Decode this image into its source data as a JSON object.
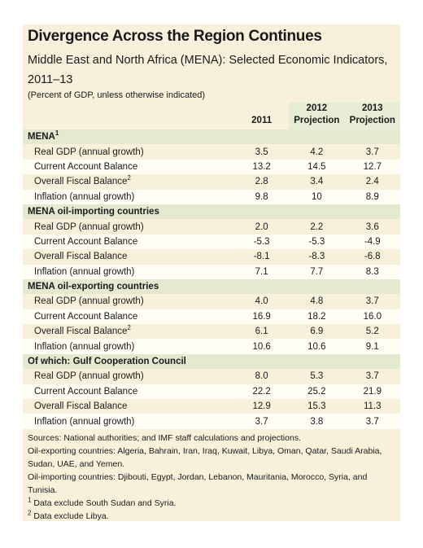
{
  "header": {
    "title": "Divergence Across the Region Continues",
    "subtitle": "Middle East and North Africa (MENA): Selected Economic Indicators, 2011–13",
    "note": "(Percent of GDP, unless otherwise indicated)"
  },
  "table": {
    "columns": [
      {
        "year": "2011"
      },
      {
        "year": "2012",
        "sub": "Projection"
      },
      {
        "year": "2013",
        "sub": "Projection"
      }
    ],
    "sections": [
      {
        "label": "MENA",
        "sup": "1",
        "rows": [
          {
            "label": "Real GDP (annual growth)",
            "values": [
              "3.5",
              "4.2",
              "3.7"
            ]
          },
          {
            "label": "Current Account Balance",
            "values": [
              "13.2",
              "14.5",
              "12.7"
            ]
          },
          {
            "label": "Overall Fiscal Balance",
            "sup": "2",
            "values": [
              "2.8",
              "3.4",
              "2.4"
            ]
          },
          {
            "label": "Inflation (annual growth)",
            "values": [
              "9.8",
              "10",
              "8.9"
            ]
          }
        ]
      },
      {
        "label": "MENA oil-importing countries",
        "rows": [
          {
            "label": "Real GDP (annual growth)",
            "values": [
              "2.0",
              "2.2",
              "3.6"
            ]
          },
          {
            "label": "Current Account Balance",
            "values": [
              "-5.3",
              "-5.3",
              "-4.9"
            ]
          },
          {
            "label": "Overall Fiscal Balance",
            "values": [
              "-8.1",
              "-8.3",
              "-6.8"
            ]
          },
          {
            "label": "Inflation (annual growth)",
            "values": [
              "7.1",
              "7.7",
              "8.3"
            ]
          }
        ]
      },
      {
        "label": "MENA oil-exporting countries",
        "rows": [
          {
            "label": "Real GDP (annual growth)",
            "values": [
              "4.0",
              "4.8",
              "3.7"
            ]
          },
          {
            "label": "Current Account Balance",
            "values": [
              "16.9",
              "18.2",
              "16.0"
            ]
          },
          {
            "label": "Overall Fiscal Balance",
            "sup": "2",
            "values": [
              "6.1",
              "6.9",
              "5.2"
            ]
          },
          {
            "label": "Inflation (annual growth)",
            "values": [
              "10.6",
              "10.6",
              "9.1"
            ]
          }
        ]
      },
      {
        "label": "Of which: Gulf Cooperation Council",
        "rows": [
          {
            "label": "Real GDP (annual growth)",
            "values": [
              "8.0",
              "5.3",
              "3.7"
            ]
          },
          {
            "label": "Current Account Balance",
            "values": [
              "22.2",
              "25.2",
              "21.9"
            ]
          },
          {
            "label": "Overall Fiscal Balance",
            "values": [
              "12.9",
              "15.3",
              "11.3"
            ]
          },
          {
            "label": "Inflation (annual growth)",
            "values": [
              "3.7",
              "3.8",
              "3.7"
            ]
          }
        ]
      }
    ]
  },
  "footnotes": {
    "lines": [
      "Sources: National authorities; and IMF staff calculations and projections.",
      "Oil-exporting countries: Algeria, Bahrain, Iran, Iraq, Kuwait, Libya, Oman, Qatar, Saudi Arabia, Sudan, UAE, and Yemen.",
      "Oil-importing countries: Djibouti, Egypt, Jordan, Lebanon, Mauritania, Morocco, Syria, and Tunisia."
    ],
    "notes": [
      {
        "mark": "1",
        "text": "Data exclude South Sudan and Syria."
      },
      {
        "mark": "2",
        "text": "Data exclude Libya."
      }
    ]
  }
}
